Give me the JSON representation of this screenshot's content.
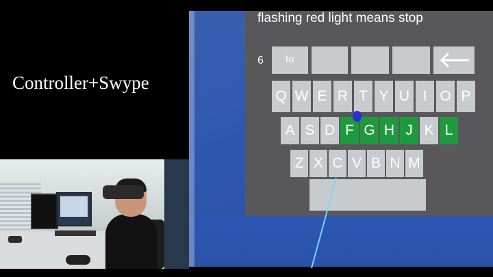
{
  "left": {
    "mode_title": "Controller+Swype"
  },
  "vr": {
    "phrase": "flashing red light means stop",
    "word_count": "6",
    "suggestions": [
      "to",
      "",
      "",
      ""
    ],
    "backspace_icon": "left-arrow-icon",
    "rows": [
      [
        "Q",
        "W",
        "E",
        "R",
        "T",
        "Y",
        "U",
        "I",
        "O",
        "P"
      ],
      [
        "A",
        "S",
        "D",
        "F",
        "G",
        "H",
        "J",
        "K",
        "L"
      ],
      [
        "Z",
        "X",
        "C",
        "V",
        "B",
        "N",
        "M"
      ]
    ],
    "swiped_keys": [
      "F",
      "G",
      "H",
      "J",
      "L"
    ],
    "colors": {
      "key": "#c8cbce",
      "swiped_key": "#1d9a3e",
      "panel": "#58585b",
      "background": "#2e58b0",
      "cursor": "#2b2ed8",
      "ray": "#7fd3ff"
    }
  }
}
